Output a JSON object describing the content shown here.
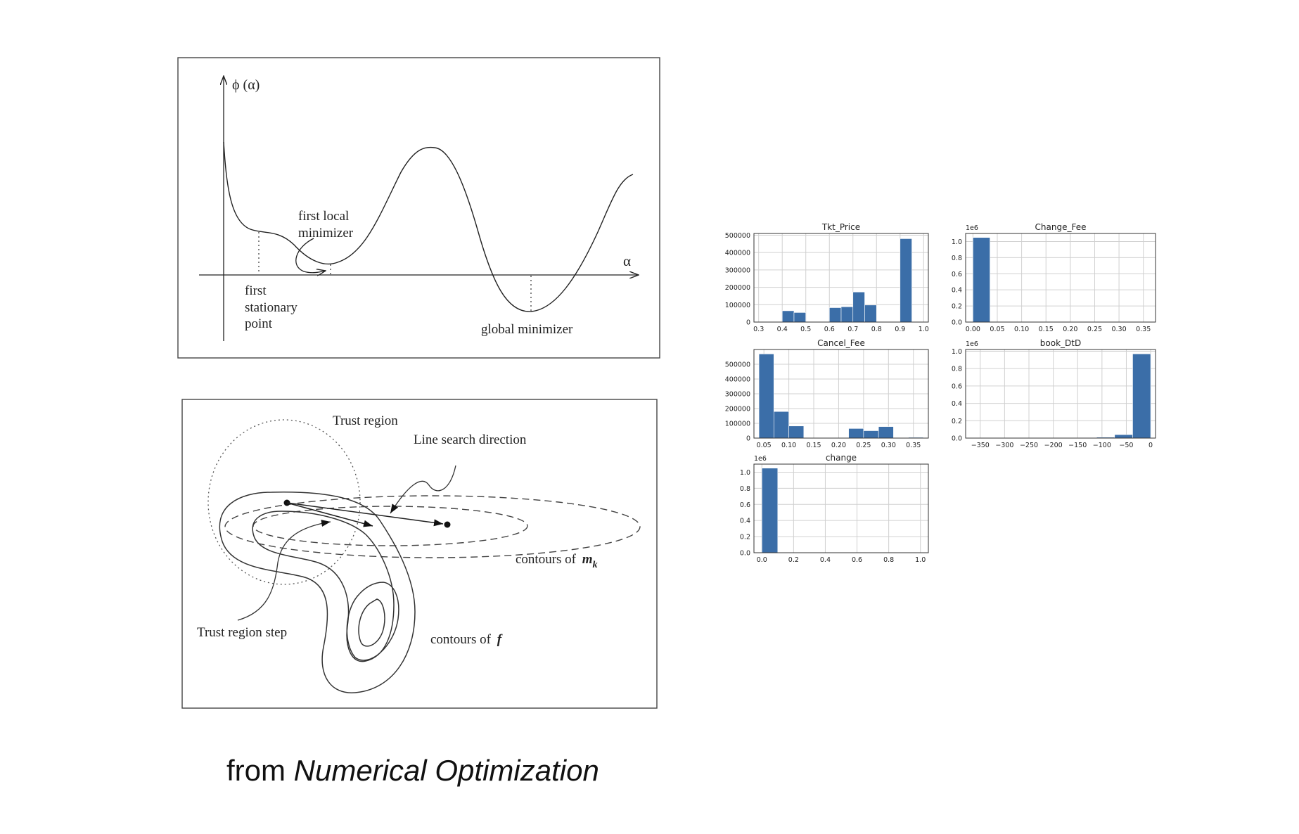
{
  "caption": {
    "prefix": "from",
    "book": "Numerical Optimization"
  },
  "line_search_figure": {
    "y_axis_label": "ϕ (α)",
    "x_axis_label": "α",
    "labels": {
      "first_local_1": "first local",
      "first_local_2": "minimizer",
      "stationary_1": "first",
      "stationary_2": "stationary",
      "stationary_3": "point",
      "global": "global minimizer"
    }
  },
  "trust_region_figure": {
    "labels": {
      "trust_region": "Trust region",
      "line_search": "Line search direction",
      "contours_m": "contours of",
      "contours_m_sym": "m",
      "contours_m_sub": "k",
      "trust_step": "Trust region step",
      "contours_f": "contours of",
      "contours_f_sym": "f"
    }
  },
  "colors": {
    "bar": "#3b6ea8",
    "grid": "#d0d0d0",
    "ink": "#222222"
  },
  "chart_data": [
    {
      "type": "bar",
      "title": "Tkt_Price",
      "bins": [
        0.3,
        0.35,
        0.4,
        0.45,
        0.5,
        0.55,
        0.6,
        0.65,
        0.7,
        0.75,
        0.8,
        0.85,
        0.9,
        0.95,
        1.0
      ],
      "counts": [
        0,
        0,
        65000,
        55000,
        0,
        0,
        83000,
        88000,
        173000,
        98000,
        0,
        0,
        480000,
        0
      ],
      "xlim": [
        0.28,
        1.02
      ],
      "xticks": [
        "0.3",
        "0.4",
        "0.5",
        "0.6",
        "0.7",
        "0.8",
        "0.9",
        "1.0"
      ],
      "xtick_vals": [
        0.3,
        0.4,
        0.5,
        0.6,
        0.7,
        0.8,
        0.9,
        1.0
      ],
      "yticks": [
        "0",
        "100000",
        "200000",
        "300000",
        "400000",
        "500000"
      ],
      "ytick_vals": [
        0,
        100000,
        200000,
        300000,
        400000,
        500000
      ],
      "ylim": [
        0,
        510000
      ],
      "multiplier": ""
    },
    {
      "type": "bar",
      "title": "Change_Fee",
      "bins": [
        0.0,
        0.035
      ],
      "counts": [
        1.05
      ],
      "xlim": [
        -0.015,
        0.375
      ],
      "xticks": [
        "0.00",
        "0.05",
        "0.10",
        "0.15",
        "0.20",
        "0.25",
        "0.30",
        "0.35"
      ],
      "xtick_vals": [
        0,
        0.05,
        0.1,
        0.15,
        0.2,
        0.25,
        0.3,
        0.35
      ],
      "yticks": [
        "0.0",
        "0.2",
        "0.4",
        "0.6",
        "0.8",
        "1.0"
      ],
      "ytick_vals": [
        0,
        0.2,
        0.4,
        0.6,
        0.8,
        1.0
      ],
      "ylim": [
        0,
        1.1
      ],
      "multiplier": "1e6"
    },
    {
      "type": "bar",
      "title": "Cancel_Fee",
      "bins": [
        0.04,
        0.07,
        0.1,
        0.13,
        0.16,
        0.19,
        0.22,
        0.25,
        0.28,
        0.31,
        0.34,
        0.37
      ],
      "counts": [
        570000,
        180000,
        82000,
        0,
        0,
        0,
        65000,
        50000,
        78000,
        0,
        5000
      ],
      "xlim": [
        0.03,
        0.38
      ],
      "xticks": [
        "0.05",
        "0.10",
        "0.15",
        "0.20",
        "0.25",
        "0.30",
        "0.35"
      ],
      "xtick_vals": [
        0.05,
        0.1,
        0.15,
        0.2,
        0.25,
        0.3,
        0.35
      ],
      "yticks": [
        "0",
        "100000",
        "200000",
        "300000",
        "400000",
        "500000"
      ],
      "ytick_vals": [
        0,
        100000,
        200000,
        300000,
        400000,
        500000
      ],
      "ylim": [
        0,
        600000
      ],
      "multiplier": ""
    },
    {
      "type": "bar",
      "title": "book_DtD",
      "bins": [
        -370,
        -333,
        -296,
        -259,
        -222,
        -185,
        -148,
        -111,
        -74,
        -37,
        0
      ],
      "counts": [
        0,
        0,
        0,
        0,
        0,
        0.003,
        0.005,
        0.01,
        0.04,
        0.97
      ],
      "xlim": [
        -380,
        10
      ],
      "xticks": [
        "−350",
        "−300",
        "−250",
        "−200",
        "−150",
        "−100",
        "−50",
        "0"
      ],
      "xtick_vals": [
        -350,
        -300,
        -250,
        -200,
        -150,
        -100,
        -50,
        0
      ],
      "yticks": [
        "0.0",
        "0.2",
        "0.4",
        "0.6",
        "0.8",
        "1.0"
      ],
      "ytick_vals": [
        0,
        0.2,
        0.4,
        0.6,
        0.8,
        1.0
      ],
      "ylim": [
        0,
        1.02
      ],
      "multiplier": "1e6"
    },
    {
      "type": "bar",
      "title": "change",
      "bins": [
        0.0,
        0.1
      ],
      "counts": [
        1.05
      ],
      "xlim": [
        -0.05,
        1.05
      ],
      "xticks": [
        "0.0",
        "0.2",
        "0.4",
        "0.6",
        "0.8",
        "1.0"
      ],
      "xtick_vals": [
        0,
        0.2,
        0.4,
        0.6,
        0.8,
        1.0
      ],
      "yticks": [
        "0.0",
        "0.2",
        "0.4",
        "0.6",
        "0.8",
        "1.0"
      ],
      "ytick_vals": [
        0,
        0.2,
        0.4,
        0.6,
        0.8,
        1.0
      ],
      "ylim": [
        0,
        1.1
      ],
      "multiplier": "1e6"
    }
  ]
}
